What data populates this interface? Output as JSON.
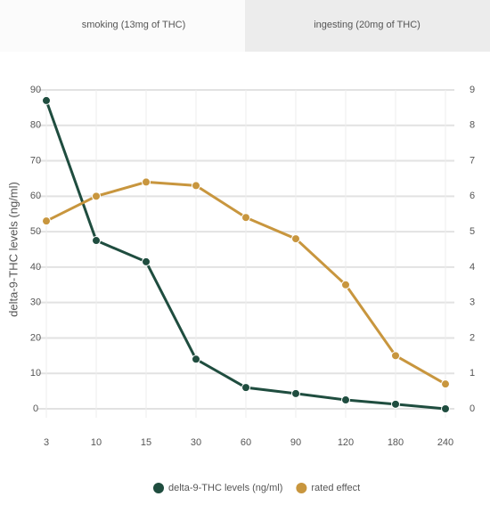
{
  "tabs": [
    "smoking (13mg of THC)",
    "ingesting (20mg of THC)"
  ],
  "chart_data": {
    "type": "line",
    "y_label": "delta-9-THC levels (ng/ml)",
    "categories": [
      "3",
      "10",
      "15",
      "30",
      "60",
      "90",
      "120",
      "180",
      "240"
    ],
    "series": [
      {
        "name": "delta-9-THC levels (ng/ml)",
        "color": "#1f4d3f",
        "values": [
          87,
          47.5,
          41.5,
          14,
          6,
          4.3,
          2.5,
          1.3,
          0
        ]
      },
      {
        "name": "rated effect",
        "color": "#c8963e",
        "axis": "y2",
        "values": [
          5.3,
          6.0,
          6.4,
          6.3,
          5.4,
          4.8,
          3.5,
          1.5,
          0.7
        ]
      }
    ],
    "ylim": [
      0,
      90
    ],
    "yticks": [
      0,
      10,
      20,
      30,
      40,
      50,
      60,
      70,
      80,
      90
    ],
    "y2lim": [
      0,
      9
    ],
    "y2ticks": [
      0,
      1,
      2,
      3,
      4,
      5,
      6,
      7,
      8,
      9
    ],
    "grid": true,
    "legend": "bottom"
  }
}
